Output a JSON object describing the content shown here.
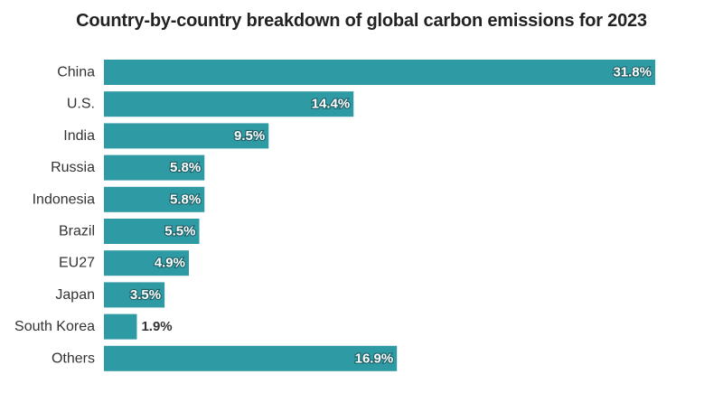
{
  "chart_data": {
    "type": "bar",
    "orientation": "horizontal",
    "title": "Country-by-country breakdown of global carbon emissions for 2023",
    "categories": [
      "China",
      "U.S.",
      "India",
      "Russia",
      "Indonesia",
      "Brazil",
      "EU27",
      "Japan",
      "South Korea",
      "Others"
    ],
    "values": [
      31.8,
      14.4,
      9.5,
      5.8,
      5.8,
      5.5,
      4.9,
      3.5,
      1.9,
      16.9
    ],
    "value_labels": [
      "31.8%",
      "14.4%",
      "9.5%",
      "5.8%",
      "5.8%",
      "5.5%",
      "4.9%",
      "3.5%",
      "1.9%",
      "16.9%"
    ],
    "unit": "%",
    "xlim": [
      0,
      31.8
    ],
    "grid": false,
    "legend": "none",
    "bar_color": "#2e9aa3"
  }
}
